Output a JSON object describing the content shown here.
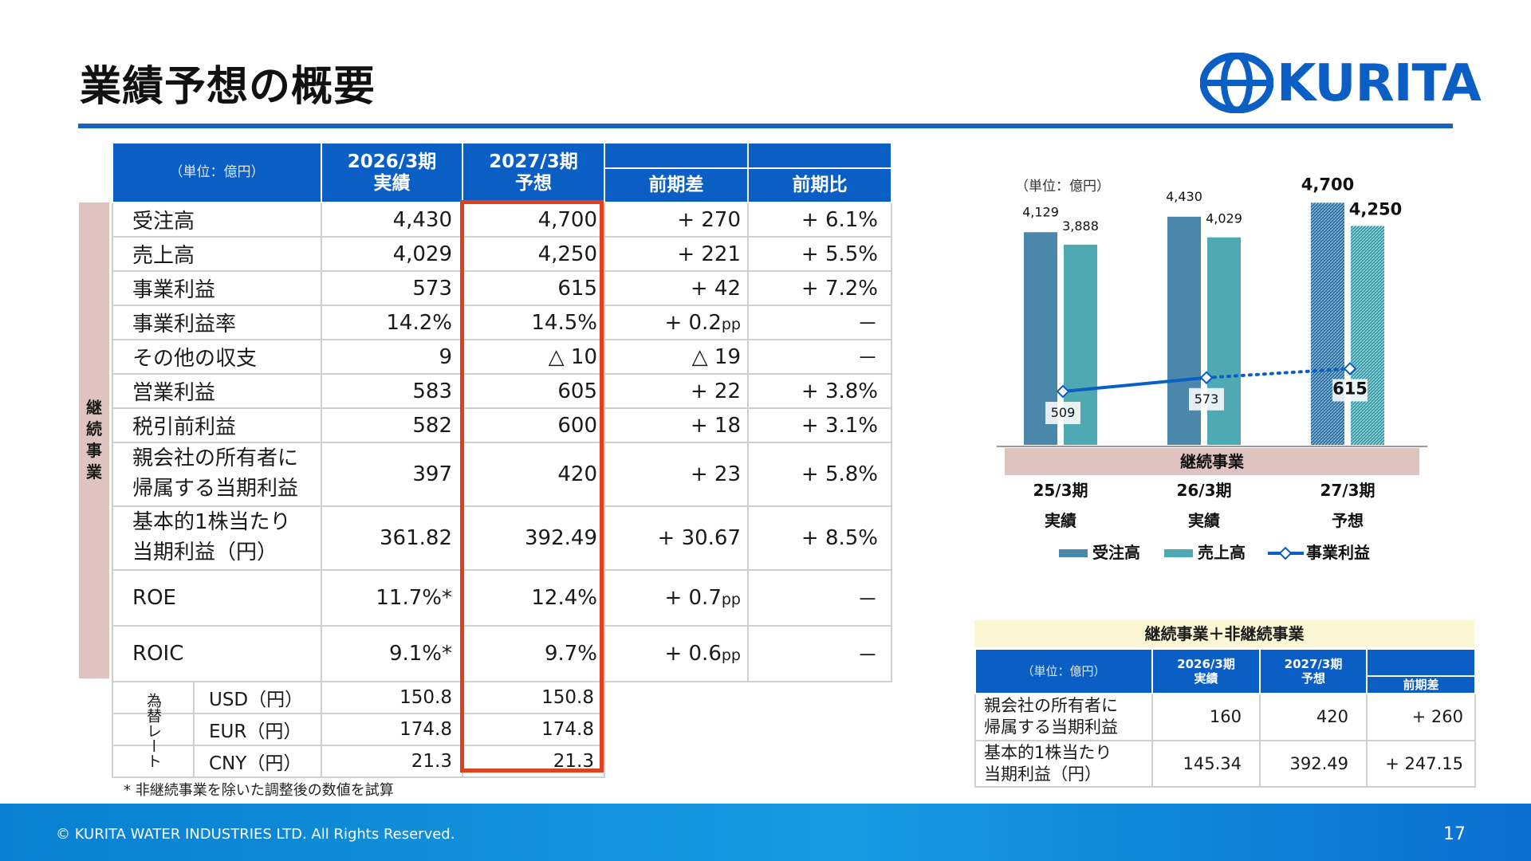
{
  "title": "業績予想の概要",
  "logo": {
    "name": "KURITA",
    "icon": "kurita-logo-mark"
  },
  "main_table": {
    "unit": "（単位：億円）",
    "headers": {
      "col_2026_top": "2026/3期",
      "col_2026_bottom": "実績",
      "col_2027_top": "2027/3期",
      "col_2027_bottom": "予想",
      "diff": "前期差",
      "ratio": "前期比"
    },
    "side_label": "継続事業",
    "rows": [
      {
        "label": "受注高",
        "actual": "4,430",
        "forecast": "4,700",
        "diff": "+ 270",
        "ratio": "+ 6.1%"
      },
      {
        "label": "売上高",
        "actual": "4,029",
        "forecast": "4,250",
        "diff": "+ 221",
        "ratio": "+ 5.5%"
      },
      {
        "label": "事業利益",
        "actual": "573",
        "forecast": "615",
        "diff": "+ 42",
        "ratio": "+ 7.2%"
      },
      {
        "label": "事業利益率",
        "actual": "14.2%",
        "forecast": "14.5%",
        "diff": "+ 0.2",
        "diff_unit": "pp",
        "ratio": "－"
      },
      {
        "label": "その他の収支",
        "actual": "9",
        "forecast": "△ 10",
        "diff": "△ 19",
        "ratio": "－"
      },
      {
        "label": "営業利益",
        "actual": "583",
        "forecast": "605",
        "diff": "+ 22",
        "ratio": "+ 3.8%"
      },
      {
        "label": "税引前利益",
        "actual": "582",
        "forecast": "600",
        "diff": "+ 18",
        "ratio": "+ 3.1%"
      },
      {
        "label_1": "親会社の所有者に",
        "label_2": "帰属する当期利益",
        "actual": "397",
        "forecast": "420",
        "diff": "+ 23",
        "ratio": "+ 5.8%"
      },
      {
        "label_1": "基本的1株当たり",
        "label_2": "当期利益（円）",
        "actual": "361.82",
        "forecast": "392.49",
        "diff": "+ 30.67",
        "ratio": "+ 8.5%"
      },
      {
        "label": "ROE",
        "actual": "11.7%*",
        "forecast": "12.4%",
        "diff": "+ 0.7",
        "diff_unit": "pp",
        "ratio": "－"
      },
      {
        "label": "ROIC",
        "actual": "9.1%*",
        "forecast": "9.7%",
        "diff": "+ 0.6",
        "diff_unit": "pp",
        "ratio": "－"
      }
    ],
    "fx_label": "為替レート",
    "fx_rows": [
      {
        "label": "USD（円）",
        "actual": "150.8",
        "forecast": "150.8"
      },
      {
        "label": "EUR（円）",
        "actual": "174.8",
        "forecast": "174.8"
      },
      {
        "label": "CNY（円）",
        "actual": "21.3",
        "forecast": "21.3"
      }
    ],
    "footnote": "* 非継続事業を除いた調整後の数値を試算"
  },
  "chart_data": {
    "type": "bar",
    "unit": "（単位：億円）",
    "categories": [
      {
        "top": "25/3期",
        "bottom": "実績"
      },
      {
        "top": "26/3期",
        "bottom": "実績"
      },
      {
        "top": "27/3期",
        "bottom": "予想"
      }
    ],
    "group_band_label": "継続事業",
    "ylim": [
      0,
      5000
    ],
    "series": [
      {
        "name": "受注高",
        "values": [
          4129,
          4430,
          4700
        ],
        "labels": [
          "4,129",
          "4,430",
          "4,700"
        ],
        "color": "#4b86ab",
        "forecast_color": "#2e6f9e"
      },
      {
        "name": "売上高",
        "values": [
          3888,
          4029,
          4250
        ],
        "labels": [
          "3,888",
          "4,029",
          "4,250"
        ],
        "color": "#4ea9b3",
        "forecast_color": "#3d9aa5"
      },
      {
        "name": "事業利益",
        "type": "line",
        "values": [
          509,
          573,
          615
        ],
        "labels": [
          "509",
          "573",
          "615"
        ],
        "color": "#0b5fc4",
        "forecast_style": "dotted"
      }
    ],
    "legend_position": "bottom",
    "grid": false
  },
  "sub_table": {
    "caption": "継続事業＋非継続事業",
    "unit": "（単位：億円）",
    "headers": {
      "col_2026_top": "2026/3期",
      "col_2026_bottom": "実績",
      "col_2027_top": "2027/3期",
      "col_2027_bottom": "予想",
      "diff": "前期差"
    },
    "rows": [
      {
        "label_1": "親会社の所有者に",
        "label_2": "帰属する当期利益",
        "actual": "160",
        "forecast": "420",
        "diff": "+ 260"
      },
      {
        "label_1": "基本的1株当たり",
        "label_2": "当期利益（円）",
        "actual": "145.34",
        "forecast": "392.49",
        "diff": "+ 247.15"
      }
    ]
  },
  "footer": {
    "copyright": "© KURITA WATER INDUSTRIES LTD. All Rights Reserved.",
    "page_number": "17"
  }
}
